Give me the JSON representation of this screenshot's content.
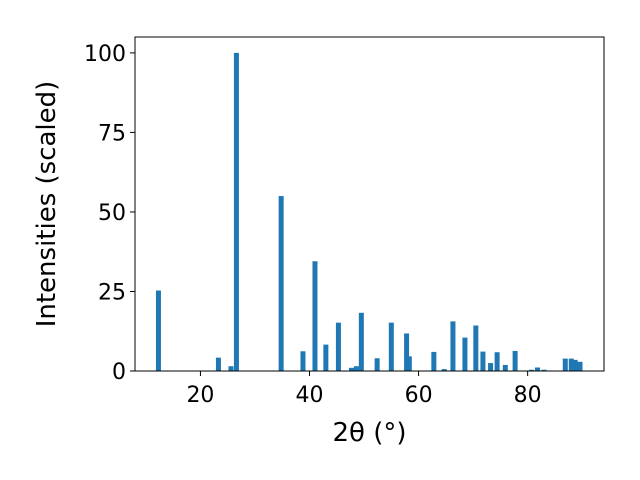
{
  "chart_data": {
    "type": "bar",
    "xlabel": "2θ (°)",
    "ylabel": "Intensities (scaled)",
    "xlim": [
      8,
      94
    ],
    "ylim": [
      0,
      105
    ],
    "xticks": [
      "20",
      "40",
      "60",
      "80"
    ],
    "yticks": [
      "0",
      "25",
      "50",
      "75",
      "100"
    ],
    "grid": false,
    "bar_color": "#1f77b4",
    "bars": [
      {
        "x": 12.3,
        "y": 25.3
      },
      {
        "x": 23.3,
        "y": 4.2
      },
      {
        "x": 25.6,
        "y": 1.5
      },
      {
        "x": 26.6,
        "y": 100
      },
      {
        "x": 34.8,
        "y": 55
      },
      {
        "x": 38.8,
        "y": 6.2
      },
      {
        "x": 41.0,
        "y": 34.5
      },
      {
        "x": 43.0,
        "y": 8.3
      },
      {
        "x": 45.3,
        "y": 15.2
      },
      {
        "x": 47.7,
        "y": 1.0
      },
      {
        "x": 48.6,
        "y": 1.5
      },
      {
        "x": 49.5,
        "y": 18.3
      },
      {
        "x": 52.4,
        "y": 4.0
      },
      {
        "x": 55.0,
        "y": 15.2
      },
      {
        "x": 57.8,
        "y": 11.8
      },
      {
        "x": 58.3,
        "y": 4.6
      },
      {
        "x": 62.8,
        "y": 6.0
      },
      {
        "x": 64.7,
        "y": 0.6
      },
      {
        "x": 66.3,
        "y": 15.6
      },
      {
        "x": 68.5,
        "y": 10.5
      },
      {
        "x": 70.5,
        "y": 14.3
      },
      {
        "x": 71.8,
        "y": 6.1
      },
      {
        "x": 73.2,
        "y": 2.5
      },
      {
        "x": 74.4,
        "y": 5.9
      },
      {
        "x": 75.9,
        "y": 1.9
      },
      {
        "x": 77.7,
        "y": 6.3
      },
      {
        "x": 80.7,
        "y": 0.4
      },
      {
        "x": 81.8,
        "y": 1.1
      },
      {
        "x": 83.0,
        "y": 0.4
      },
      {
        "x": 86.9,
        "y": 3.9
      },
      {
        "x": 88.0,
        "y": 3.9
      },
      {
        "x": 88.7,
        "y": 3.5
      },
      {
        "x": 89.6,
        "y": 2.9
      }
    ]
  }
}
